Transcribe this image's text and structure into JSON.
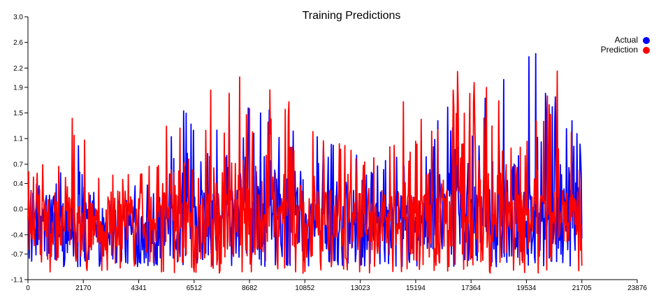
{
  "chart_data": {
    "type": "line",
    "title": "Training Predictions",
    "xlabel": "",
    "ylabel": "",
    "xlim": [
      0,
      23876
    ],
    "ylim": [
      -1.1,
      3.0
    ],
    "x_ticks": [
      "0",
      "2170",
      "4341",
      "6512",
      "8682",
      "10852",
      "13023",
      "15194",
      "17364",
      "19534",
      "21705",
      "23876"
    ],
    "y_ticks": [
      "3.0",
      "2.6",
      "2.2",
      "1.9",
      "1.5",
      "1.1",
      "0.7",
      "0.4",
      "0.0",
      "-0.4",
      "-0.7",
      "-1.1"
    ],
    "grid": false,
    "legend_position": "top-right",
    "n_points": 21705,
    "series": [
      {
        "name": "Actual",
        "color": "#0000ff",
        "envelope": [
          [
            0,
            -0.9,
            0.4
          ],
          [
            1000,
            -0.9,
            0.6
          ],
          [
            2000,
            -0.9,
            1.1
          ],
          [
            3000,
            -0.9,
            0.8
          ],
          [
            4000,
            -0.9,
            0.6
          ],
          [
            5000,
            -0.9,
            0.8
          ],
          [
            6000,
            -0.9,
            1.9
          ],
          [
            7000,
            -0.9,
            1.2
          ],
          [
            8000,
            -0.9,
            1.9
          ],
          [
            9000,
            -0.9,
            2.0
          ],
          [
            10000,
            -0.9,
            1.9
          ],
          [
            11000,
            -0.9,
            1.3
          ],
          [
            12000,
            -0.9,
            1.4
          ],
          [
            13000,
            -0.9,
            1.0
          ],
          [
            14000,
            -0.9,
            1.0
          ],
          [
            15000,
            -0.9,
            1.0
          ],
          [
            16000,
            -0.9,
            1.9
          ],
          [
            17000,
            -0.9,
            2.0
          ],
          [
            18000,
            -0.9,
            1.9
          ],
          [
            19000,
            -0.9,
            2.1
          ],
          [
            20000,
            -0.9,
            2.6
          ],
          [
            21000,
            -0.9,
            1.8
          ],
          [
            21705,
            -0.9,
            1.1
          ]
        ]
      },
      {
        "name": "Prediction",
        "color": "#ff0000",
        "envelope": [
          [
            0,
            -1.0,
            0.9
          ],
          [
            1000,
            -1.0,
            0.6
          ],
          [
            1500,
            -1.0,
            1.8
          ],
          [
            2500,
            -1.0,
            0.8
          ],
          [
            4000,
            -1.0,
            0.6
          ],
          [
            5000,
            -1.0,
            0.9
          ],
          [
            6000,
            -1.0,
            2.0
          ],
          [
            7000,
            -1.0,
            1.9
          ],
          [
            8000,
            -1.0,
            2.0
          ],
          [
            8700,
            -1.0,
            2.2
          ],
          [
            9500,
            -1.0,
            2.0
          ],
          [
            10000,
            -1.0,
            1.9
          ],
          [
            11000,
            -1.0,
            1.4
          ],
          [
            12000,
            -1.0,
            1.2
          ],
          [
            13000,
            -1.0,
            0.9
          ],
          [
            14000,
            -1.0,
            0.9
          ],
          [
            15000,
            -1.0,
            2.1
          ],
          [
            16500,
            -1.0,
            1.9
          ],
          [
            17300,
            -1.0,
            2.5
          ],
          [
            18500,
            -1.0,
            1.9
          ],
          [
            19000,
            -1.0,
            2.1
          ],
          [
            20000,
            -1.0,
            1.6
          ],
          [
            20500,
            -1.0,
            2.6
          ],
          [
            21705,
            -1.0,
            1.0
          ]
        ]
      }
    ]
  }
}
